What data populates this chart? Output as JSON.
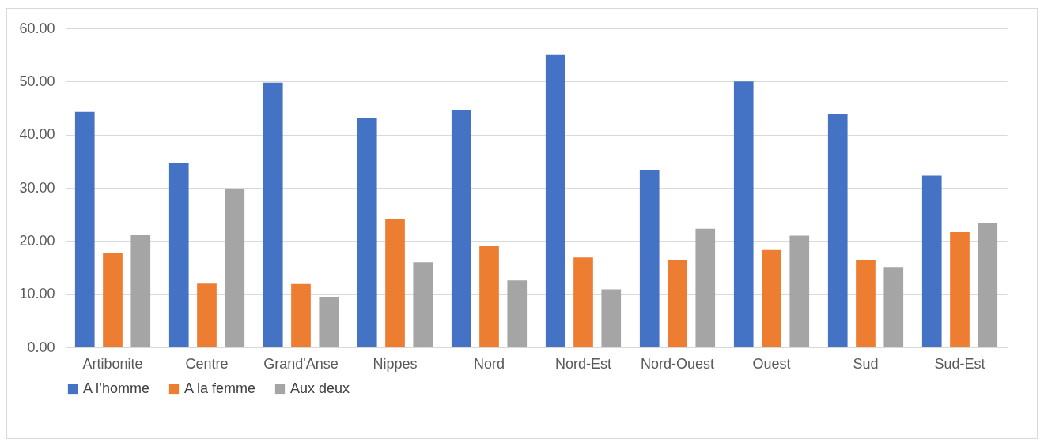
{
  "chart_data": {
    "type": "bar",
    "categories": [
      "Artibonite",
      "Centre",
      "Grand'Anse",
      "Nippes",
      "Nord",
      "Nord-Est",
      "Nord-Ouest",
      "Ouest",
      "Sud",
      "Sud-Est"
    ],
    "series": [
      {
        "name": "A l’homme",
        "color": "#4472c4",
        "values": [
          44.3,
          34.7,
          49.8,
          43.2,
          44.7,
          55.0,
          33.4,
          50.0,
          43.9,
          32.3
        ]
      },
      {
        "name": "A la femme",
        "color": "#ed7d31",
        "values": [
          17.7,
          12.0,
          11.9,
          24.1,
          19.0,
          16.9,
          16.5,
          18.3,
          16.5,
          21.7
        ]
      },
      {
        "name": "Aux deux",
        "color": "#a5a5a5",
        "values": [
          21.1,
          29.8,
          9.5,
          16.0,
          12.6,
          10.9,
          22.3,
          21.0,
          15.1,
          23.4
        ]
      }
    ],
    "ylim": [
      0,
      60
    ],
    "yticks": [
      {
        "value": 0,
        "label": "0.00"
      },
      {
        "value": 10,
        "label": "10.00"
      },
      {
        "value": 20,
        "label": "20.00"
      },
      {
        "value": 30,
        "label": "30.00"
      },
      {
        "value": 40,
        "label": "40.00"
      },
      {
        "value": 50,
        "label": "50.00"
      },
      {
        "value": 60,
        "label": "60.00"
      }
    ],
    "grid": "y",
    "legend": "bottom"
  }
}
